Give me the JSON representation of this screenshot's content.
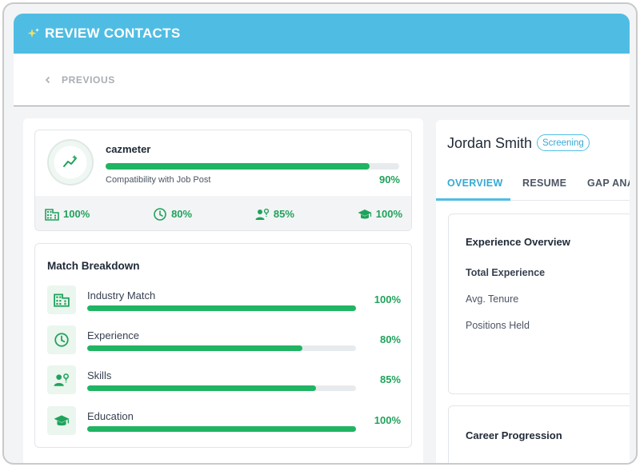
{
  "header": {
    "title": "REVIEW CONTACTS"
  },
  "nav": {
    "previous_label": "PREVIOUS"
  },
  "cazmeter": {
    "title": "cazmeter",
    "subtitle": "Compatibility with Job Post",
    "percent_label": "90%",
    "percent": 90,
    "stats": [
      {
        "icon": "building-icon",
        "label": "100%"
      },
      {
        "icon": "clock-icon",
        "label": "80%"
      },
      {
        "icon": "skills-icon",
        "label": "85%"
      },
      {
        "icon": "graduation-cap-icon",
        "label": "100%"
      }
    ]
  },
  "match_breakdown": {
    "title": "Match Breakdown",
    "rows": [
      {
        "icon": "building-icon",
        "label": "Industry Match",
        "percent_label": "100%",
        "percent": 100
      },
      {
        "icon": "clock-icon",
        "label": "Experience",
        "percent_label": "80%",
        "percent": 80
      },
      {
        "icon": "skills-icon",
        "label": "Skills",
        "percent_label": "85%",
        "percent": 85
      },
      {
        "icon": "graduation-cap-icon",
        "label": "Education",
        "percent_label": "100%",
        "percent": 100
      }
    ]
  },
  "candidate": {
    "name": "Jordan Smith",
    "status": "Screening"
  },
  "tabs": [
    {
      "label": "OVERVIEW",
      "active": true
    },
    {
      "label": "RESUME",
      "active": false
    },
    {
      "label": "GAP ANA",
      "active": false
    }
  ],
  "experience_overview": {
    "title": "Experience Overview",
    "items": [
      "Total Experience",
      "Avg. Tenure",
      "Positions Held"
    ]
  },
  "career_progression": {
    "title": "Career Progression"
  },
  "colors": {
    "header": "#4fbde3",
    "accent_green": "#20b463",
    "tab_active": "#36a9d6"
  }
}
